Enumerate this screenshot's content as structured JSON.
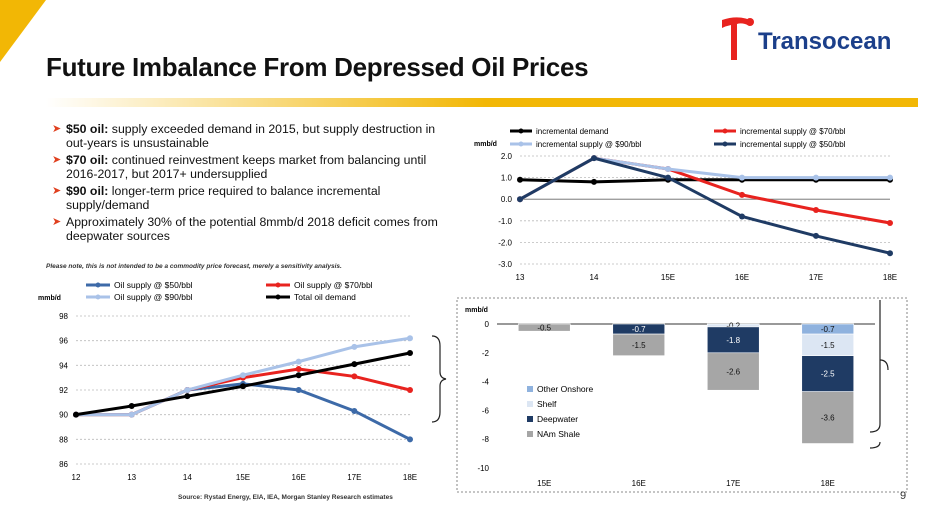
{
  "slide": {
    "title": "Future Imbalance From Depressed Oil Prices",
    "logo_text": "Transocean",
    "bullets": [
      {
        "bold": "$50 oil:",
        "text": " supply exceeded demand in 2015, but supply destruction in out-years is unsustainable"
      },
      {
        "bold": "$70 oil:",
        "text": " continued reinvestment keeps market from balancing until 2016-2017, but 2017+ undersupplied"
      },
      {
        "bold": "$90 oil:",
        "text": " longer-term price required to balance incremental supply/demand"
      },
      {
        "bold": "",
        "text": "Approximately 30% of the potential 8mmb/d 2018 deficit comes from deepwater sources"
      }
    ],
    "note": "Please note, this is not intended to be a commodity price forecast, merely a sensitivity analysis.",
    "source": "Source: Rystad Energy, EIA, IEA, Morgan Stanley Research estimates",
    "page_number": "9",
    "colors": {
      "accent": "#f2b705",
      "brand": "#1b3f8a",
      "logo_red": "#e8231f"
    }
  },
  "chart_data": [
    {
      "type": "line",
      "ylabel": "mmb/d",
      "categories": [
        "12",
        "13",
        "14",
        "15E",
        "16E",
        "17E",
        "18E"
      ],
      "ylim": [
        86,
        98
      ],
      "yticks": [
        86,
        88,
        90,
        92,
        94,
        96,
        98
      ],
      "grid": true,
      "legend": "top",
      "series": [
        {
          "name": "Oil supply @ $50/bbl",
          "color": "#3d6aa8",
          "values": [
            90,
            90,
            92,
            92.5,
            92,
            90.3,
            88
          ]
        },
        {
          "name": "Oil supply @ $70/bbl",
          "color": "#e8231f",
          "values": [
            90,
            90,
            92,
            93,
            93.7,
            93.1,
            92
          ]
        },
        {
          "name": "Oil supply @ $90/bbl",
          "color": "#a9c2e8",
          "values": [
            90,
            90,
            92,
            93.2,
            94.3,
            95.5,
            96.2
          ]
        },
        {
          "name": "Total oil demand",
          "color": "#000000",
          "values": [
            90,
            90.7,
            91.5,
            92.3,
            93.2,
            94.1,
            95
          ]
        }
      ]
    },
    {
      "type": "line",
      "ylabel": "mmb/d",
      "categories": [
        "13",
        "14",
        "15E",
        "16E",
        "17E",
        "18E"
      ],
      "ylim": [
        -3.0,
        2.0
      ],
      "yticks": [
        "-3.0",
        "-2.0",
        "-1.0",
        "0.0",
        "1.0",
        "2.0"
      ],
      "grid": true,
      "legend": "top",
      "series": [
        {
          "name": "incremental demand",
          "color": "#000000",
          "values": [
            0.9,
            0.8,
            0.9,
            0.9,
            0.9,
            0.9
          ]
        },
        {
          "name": "incremental supply @ $70/bbl",
          "color": "#e8231f",
          "values": [
            0.0,
            1.9,
            1.4,
            0.2,
            -0.5,
            -1.1
          ]
        },
        {
          "name": "incremental supply @ $90/bbl",
          "color": "#a9c2e8",
          "values": [
            0.0,
            1.9,
            1.4,
            1.0,
            1.0,
            1.0
          ]
        },
        {
          "name": "incremental supply @ $50/bbl",
          "color": "#1f3b64",
          "values": [
            0.0,
            1.9,
            1.0,
            -0.8,
            -1.7,
            -2.5
          ]
        }
      ]
    },
    {
      "type": "bar",
      "stacked": true,
      "ylabel": "mmb/d",
      "categories": [
        "15E",
        "16E",
        "17E",
        "18E"
      ],
      "ylim": [
        -10,
        0
      ],
      "yticks": [
        "0",
        "-2",
        "-4",
        "-6",
        "-8",
        "-10"
      ],
      "legend": "left",
      "series": [
        {
          "name": "Other Onshore",
          "color": "#8fb2de",
          "values": [
            null,
            null,
            null,
            -0.7
          ]
        },
        {
          "name": "Shelf",
          "color": "#dce6f3",
          "values": [
            null,
            null,
            -0.2,
            -1.5
          ]
        },
        {
          "name": "Deepwater",
          "color": "#1f3b64",
          "values": [
            null,
            -0.7,
            -1.8,
            -2.5
          ]
        },
        {
          "name": "NAm Shale",
          "color": "#a6a6a6",
          "values": [
            -0.5,
            -1.5,
            -2.6,
            -3.6
          ]
        }
      ]
    }
  ]
}
